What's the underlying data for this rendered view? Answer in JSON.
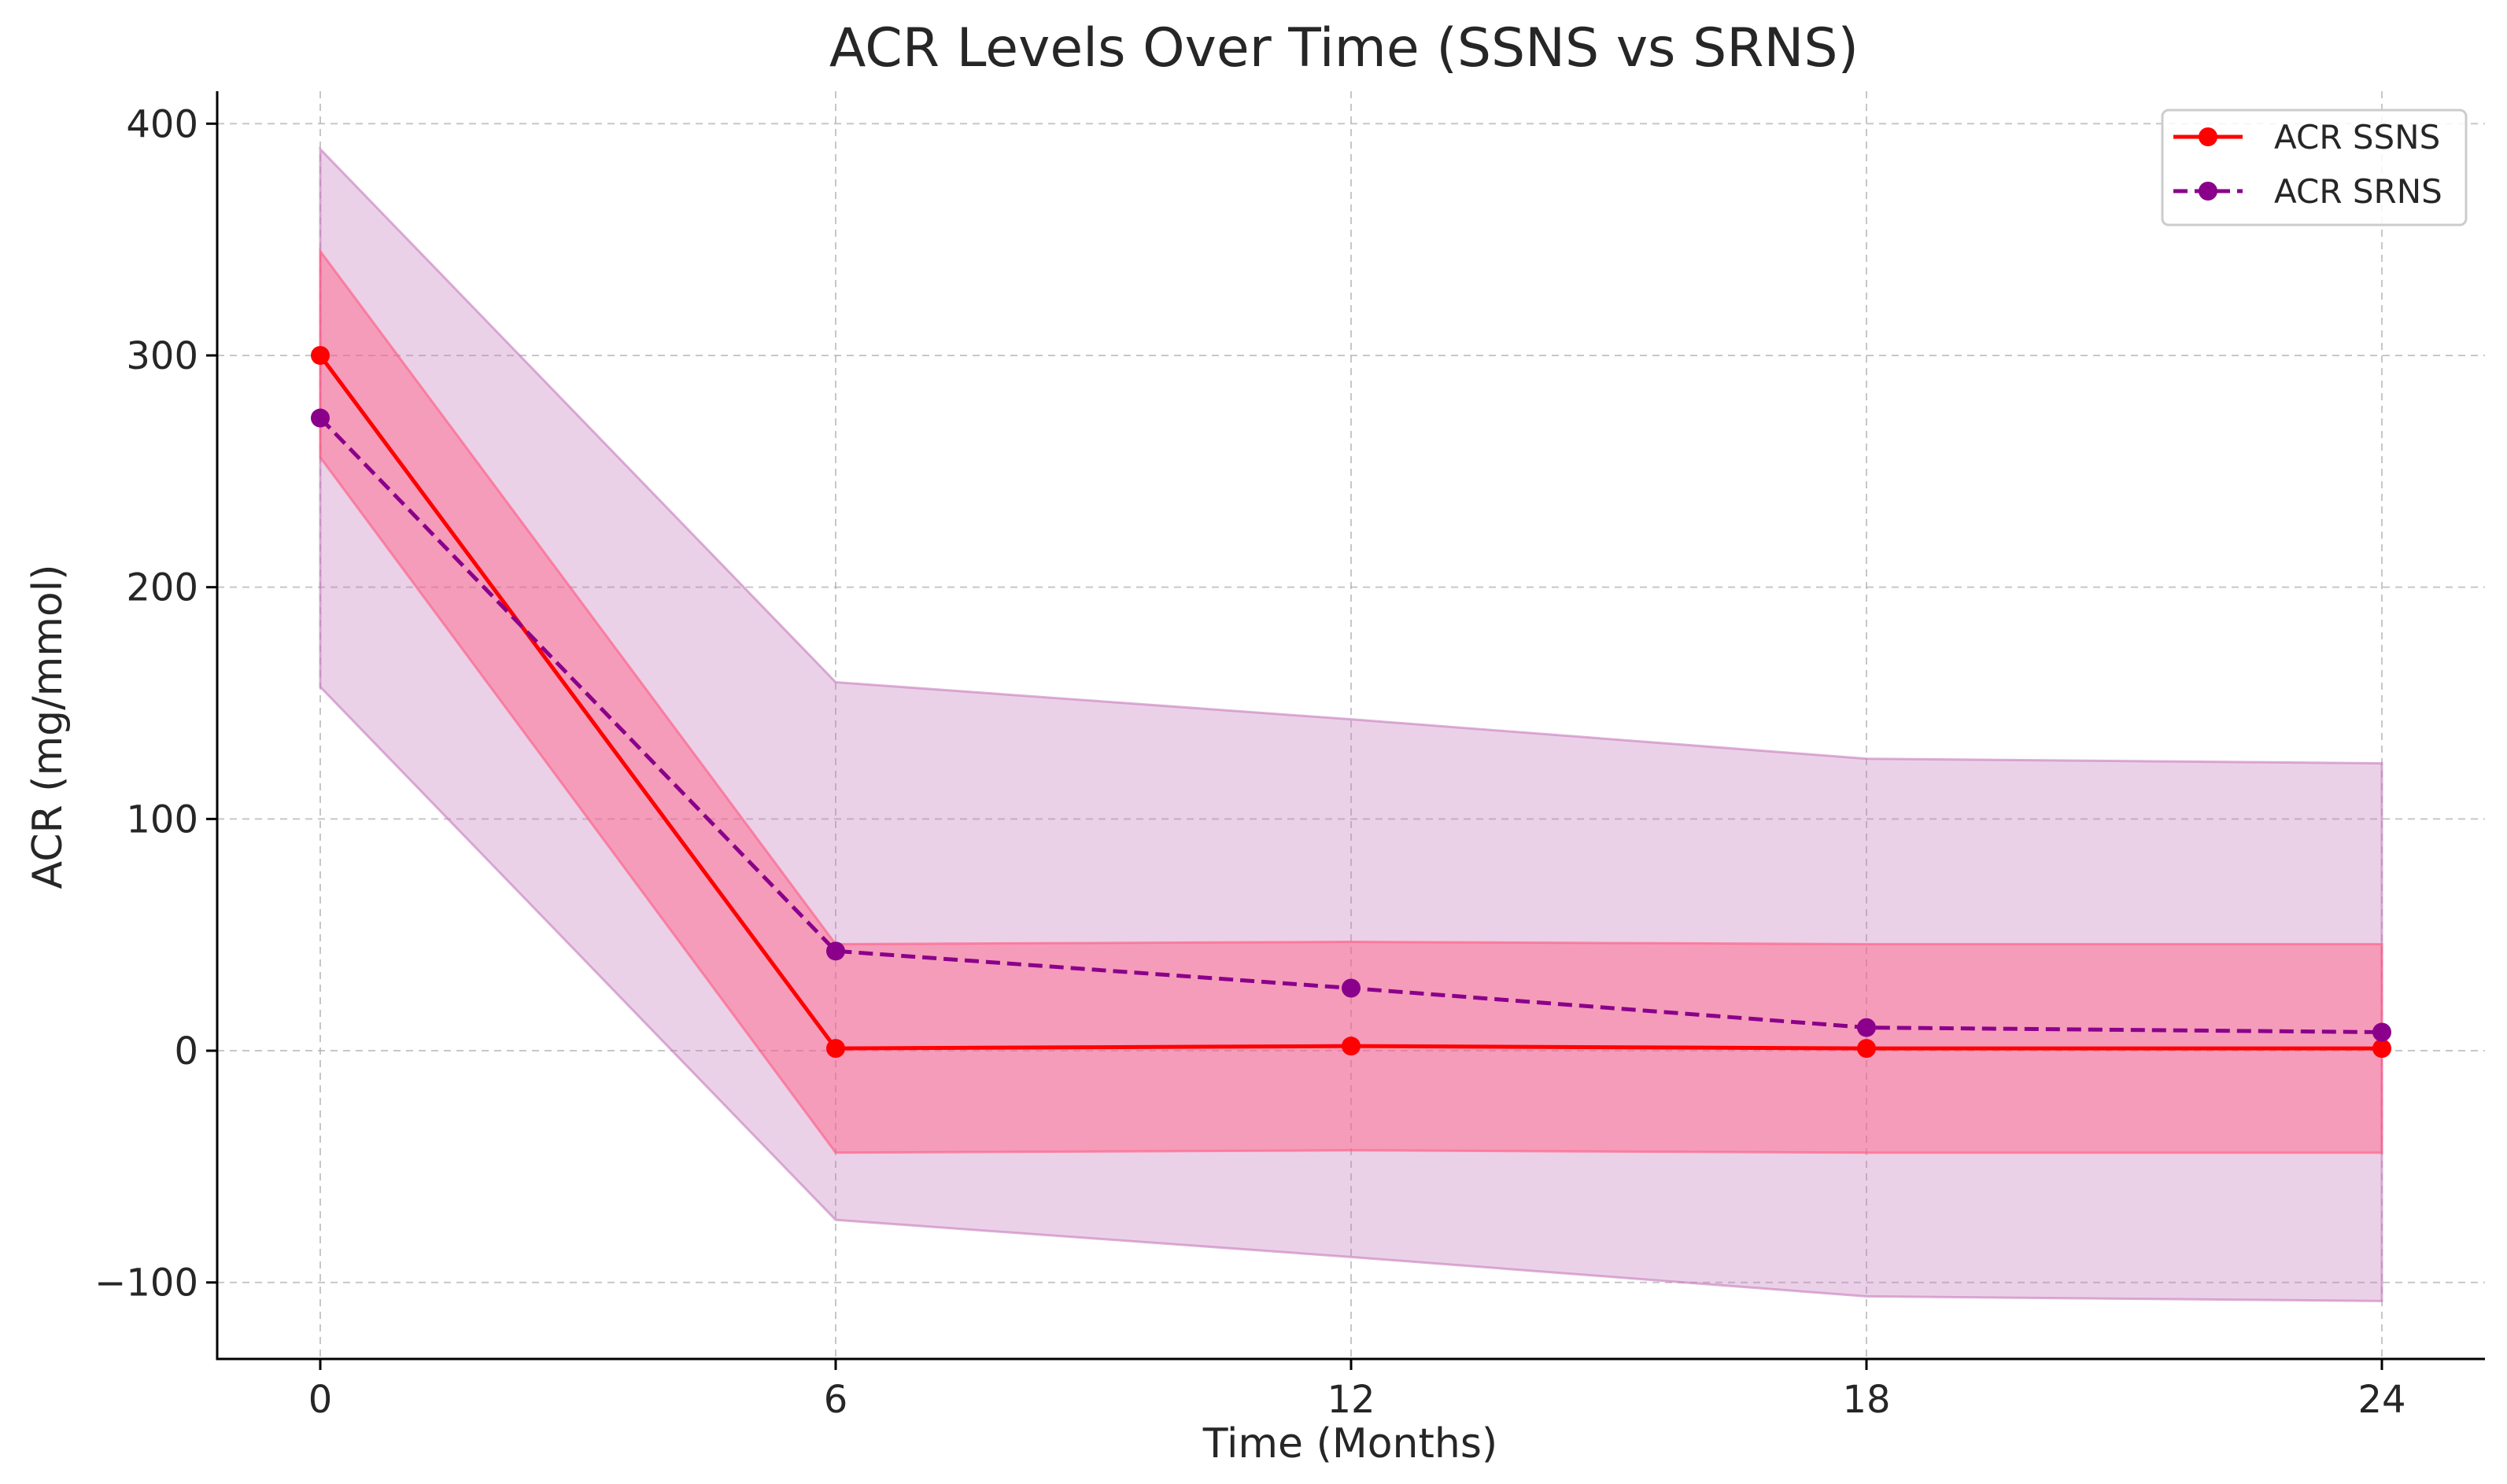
{
  "chart_data": {
    "type": "line",
    "title": "ACR Levels Over Time (SSNS vs SRNS)",
    "xlabel": "Time (Months)",
    "ylabel": "ACR (mg/mmol)",
    "x": [
      0,
      6,
      12,
      18,
      24
    ],
    "xticks": [
      0,
      6,
      12,
      18,
      24
    ],
    "xtick_labels": [
      "0",
      "6",
      "12",
      "18",
      "24"
    ],
    "yticks": [
      -100,
      0,
      100,
      200,
      300,
      400
    ],
    "ytick_labels": [
      "−100",
      "0",
      "100",
      "200",
      "300",
      "400"
    ],
    "xlim": [
      -1.2,
      25.2
    ],
    "ylim": [
      -133,
      414
    ],
    "grid": true,
    "legend_position": "top-right",
    "series": [
      {
        "name": "ACR SSNS",
        "values": [
          300,
          1,
          2,
          1,
          1
        ],
        "band_lower": [
          256,
          -44,
          -43,
          -44,
          -44
        ],
        "band_upper": [
          345,
          46,
          47,
          46,
          46
        ],
        "color": "#ff0000",
        "band_color": "#ff5a82",
        "band_opacity": 0.45,
        "line_style": "solid"
      },
      {
        "name": "ACR SRNS",
        "values": [
          273,
          43,
          27,
          10,
          8
        ],
        "band_lower": [
          157,
          -73,
          -89,
          -106,
          -108
        ],
        "band_upper": [
          389,
          159,
          143,
          126,
          124
        ],
        "color": "#8b008b",
        "band_color": "#c77bbd",
        "band_opacity": 0.35,
        "line_style": "dashed"
      }
    ]
  }
}
